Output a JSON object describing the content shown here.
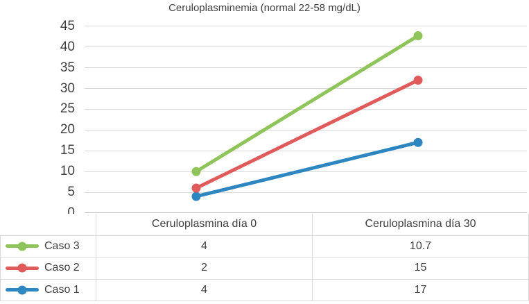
{
  "colors": {
    "caso1": "#2E86C1",
    "caso2": "#E05C5C",
    "caso3": "#8EC45A",
    "grid": "#D9D9D9",
    "axis": "#BFBFBF",
    "text": "#3F3F3F"
  },
  "chart_data": {
    "type": "line",
    "stacked": true,
    "title": "Ceruloplasminemia (normal 22-58 mg/dL)",
    "categories": [
      "Ceruloplasmina día 0",
      "Ceruloplasmina día 30"
    ],
    "series": [
      {
        "name": "Caso 3",
        "color_key": "caso3",
        "values": [
          4,
          10.7
        ]
      },
      {
        "name": "Caso 2",
        "color_key": "caso2",
        "values": [
          2,
          15
        ]
      },
      {
        "name": "Caso 1",
        "color_key": "caso1",
        "values": [
          4,
          17
        ]
      }
    ],
    "plotted_cumulative_points": [
      {
        "name": "Caso 1",
        "color_key": "caso1",
        "values": [
          4,
          17
        ]
      },
      {
        "name": "Caso 2",
        "color_key": "caso2",
        "values": [
          6,
          32
        ]
      },
      {
        "name": "Caso 3",
        "color_key": "caso3",
        "values": [
          10,
          42.7
        ]
      }
    ],
    "y_axis": {
      "min": 0,
      "max": 45,
      "step": 5,
      "ticks": [
        0,
        5,
        10,
        15,
        20,
        25,
        30,
        35,
        40,
        45
      ]
    },
    "grid": "horizontal",
    "legend_position": "data-table-left-column",
    "x_labels_shown_in": "data-table-header"
  },
  "table": {
    "row_label_column_values": [
      "Caso 3",
      "Caso 2",
      "Caso 1"
    ],
    "cell_values": [
      [
        "4",
        "10.7"
      ],
      [
        "2",
        "15"
      ],
      [
        "4",
        "17"
      ]
    ]
  }
}
